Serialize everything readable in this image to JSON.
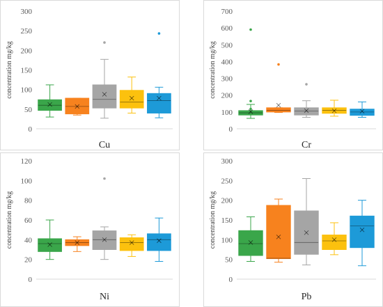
{
  "colors": [
    "#3aa64a",
    "#f7821e",
    "#a5a5a5",
    "#fcc10e",
    "#1d9ad8"
  ],
  "chart_data": [
    {
      "type": "box",
      "xlabel": "Cu",
      "ylabel": "concentration  mg/kg",
      "ylim": [
        0,
        300
      ],
      "yticks": [
        "0",
        "50",
        "100",
        "150",
        "200",
        "250",
        "300"
      ],
      "grid": false,
      "boxes": [
        {
          "whisker_low": 30,
          "q1": 47,
          "median": 60,
          "q3": 74,
          "whisker_high": 112,
          "mean": 62,
          "outliers": []
        },
        {
          "whisker_low": 35,
          "q1": 38,
          "median": 57,
          "q3": 78,
          "whisker_high": 78,
          "mean": 57,
          "outliers": []
        },
        {
          "whisker_low": 27,
          "q1": 53,
          "median": 75,
          "q3": 112,
          "whisker_high": 177,
          "mean": 88,
          "outliers": [
            220
          ]
        },
        {
          "whisker_low": 40,
          "q1": 53,
          "median": 68,
          "q3": 98,
          "whisker_high": 132,
          "mean": 78,
          "outliers": []
        },
        {
          "whisker_low": 28,
          "q1": 40,
          "median": 72,
          "q3": 90,
          "whisker_high": 106,
          "mean": 78,
          "outliers": [
            243
          ]
        }
      ]
    },
    {
      "type": "box",
      "xlabel": "Cr",
      "ylabel": "concentration  mg/kg",
      "ylim": [
        0,
        700
      ],
      "yticks": [
        "0",
        "100",
        "200",
        "300",
        "400",
        "500",
        "600",
        "700"
      ],
      "grid": false,
      "boxes": [
        {
          "whisker_low": 62,
          "q1": 82,
          "median": 95,
          "q3": 108,
          "whisker_high": 145,
          "mean": 102,
          "outliers": [
            118,
            165,
            590
          ]
        },
        {
          "whisker_low": 97,
          "q1": 100,
          "median": 110,
          "q3": 125,
          "whisker_high": 125,
          "mean": 140,
          "outliers": [
            383
          ]
        },
        {
          "whisker_low": 68,
          "q1": 82,
          "median": 105,
          "q3": 125,
          "whisker_high": 167,
          "mean": 108,
          "outliers": [
            265
          ]
        },
        {
          "whisker_low": 75,
          "q1": 92,
          "median": 110,
          "q3": 125,
          "whisker_high": 170,
          "mean": 107,
          "outliers": []
        },
        {
          "whisker_low": 68,
          "q1": 80,
          "median": 100,
          "q3": 117,
          "whisker_high": 160,
          "mean": 105,
          "outliers": []
        }
      ]
    },
    {
      "type": "box",
      "xlabel": "Ni",
      "ylabel": "concentration  mg/kg",
      "ylim": [
        0,
        120
      ],
      "yticks": [
        "0",
        "20",
        "40",
        "60",
        "80",
        "100",
        "120"
      ],
      "grid": false,
      "boxes": [
        {
          "whisker_low": 20,
          "q1": 28,
          "median": 36,
          "q3": 41,
          "whisker_high": 60,
          "mean": 35,
          "outliers": []
        },
        {
          "whisker_low": 28,
          "q1": 34,
          "median": 37,
          "q3": 40,
          "whisker_high": 43,
          "mean": 37,
          "outliers": []
        },
        {
          "whisker_low": 20,
          "q1": 30,
          "median": 40,
          "q3": 49,
          "whisker_high": 53,
          "mean": 40,
          "outliers": [
            102
          ]
        },
        {
          "whisker_low": 23,
          "q1": 29,
          "median": 37,
          "q3": 42,
          "whisker_high": 45,
          "mean": 37,
          "outliers": []
        },
        {
          "whisker_low": 18,
          "q1": 29,
          "median": 40,
          "q3": 46,
          "whisker_high": 62,
          "mean": 39,
          "outliers": []
        }
      ]
    },
    {
      "type": "box",
      "xlabel": "Pb",
      "ylabel": "concentration  mg/kg",
      "ylim": [
        0,
        300
      ],
      "yticks": [
        "0",
        "50",
        "100",
        "150",
        "200",
        "250",
        "300"
      ],
      "grid": false,
      "boxes": [
        {
          "whisker_low": 45,
          "q1": 60,
          "median": 90,
          "q3": 123,
          "whisker_high": 158,
          "mean": 93,
          "outliers": []
        },
        {
          "whisker_low": 43,
          "q1": 52,
          "median": 53,
          "q3": 187,
          "whisker_high": 203,
          "mean": 107,
          "outliers": []
        },
        {
          "whisker_low": 36,
          "q1": 63,
          "median": 93,
          "q3": 173,
          "whisker_high": 255,
          "mean": 118,
          "outliers": []
        },
        {
          "whisker_low": 62,
          "q1": 75,
          "median": 97,
          "q3": 112,
          "whisker_high": 143,
          "mean": 100,
          "outliers": []
        },
        {
          "whisker_low": 34,
          "q1": 80,
          "median": 135,
          "q3": 160,
          "whisker_high": 200,
          "mean": 125,
          "outliers": []
        }
      ]
    }
  ]
}
